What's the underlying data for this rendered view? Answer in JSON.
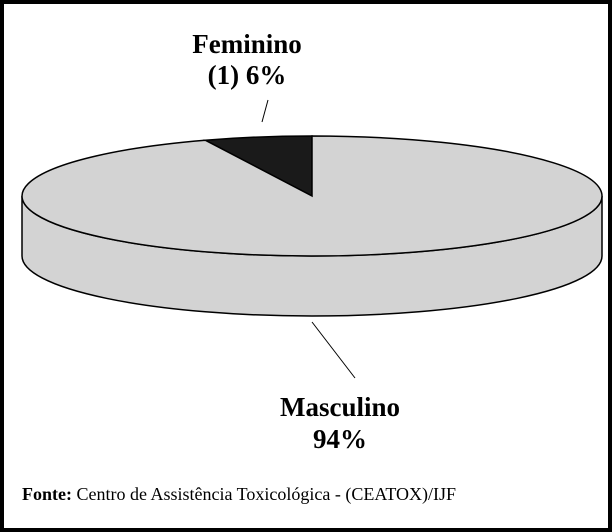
{
  "chart_data": {
    "type": "pie",
    "categories": [
      "Feminino",
      "Masculino"
    ],
    "values": [
      6,
      94
    ],
    "value_labels": [
      "(1) 6%",
      "94%"
    ],
    "colors": [
      "#1a1a1a",
      "#d3d3d3"
    ],
    "source_label": "Fonte:",
    "source": "Centro de Assistência Toxicológica - (CEATOX)/IJF"
  }
}
